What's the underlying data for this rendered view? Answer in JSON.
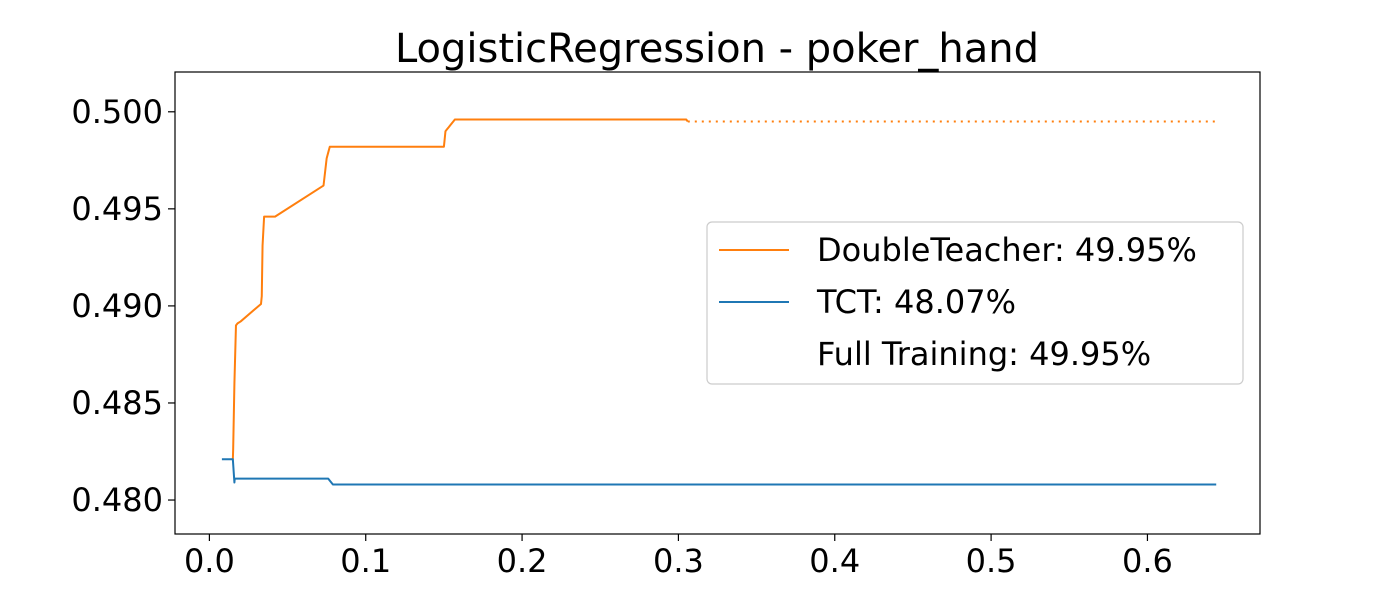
{
  "chart_data": {
    "type": "line",
    "title": "LogisticRegression - poker_hand",
    "xlabel": "",
    "ylabel": "",
    "xlim": [
      -0.022,
      0.672
    ],
    "ylim": [
      0.47825,
      0.50205
    ],
    "xticks": [
      0.0,
      0.1,
      0.2,
      0.3,
      0.4,
      0.5,
      0.6
    ],
    "xtick_labels": [
      "0.0",
      "0.1",
      "0.2",
      "0.3",
      "0.4",
      "0.5",
      "0.6"
    ],
    "yticks": [
      0.48,
      0.485,
      0.49,
      0.495,
      0.5
    ],
    "ytick_labels": [
      "0.480",
      "0.485",
      "0.490",
      "0.495",
      "0.500"
    ],
    "grid": false,
    "legend_position": "center-right",
    "series": [
      {
        "name": "DoubleTeacher: 49.95%",
        "color": "#ff7f0e",
        "style": "solid",
        "x": [
          0.015,
          0.0152,
          0.016,
          0.0165,
          0.017,
          0.018,
          0.02,
          0.033,
          0.0335,
          0.034,
          0.035,
          0.04,
          0.042,
          0.073,
          0.074,
          0.075,
          0.076,
          0.077,
          0.15,
          0.1505,
          0.151,
          0.152,
          0.153,
          0.154,
          0.156,
          0.157,
          0.158,
          0.305,
          0.306
        ],
        "y": [
          0.4821,
          0.4826,
          0.486,
          0.4875,
          0.489,
          0.4891,
          0.4892,
          0.4901,
          0.4905,
          0.4931,
          0.4946,
          0.4946,
          0.4946,
          0.4962,
          0.4969,
          0.4976,
          0.4979,
          0.4982,
          0.4982,
          0.4986,
          0.499,
          0.4991,
          0.4992,
          0.4993,
          0.4995,
          0.4996,
          0.4996,
          0.4996,
          0.4995
        ]
      },
      {
        "name": "",
        "color": "#ff7f0e",
        "style": "dotted",
        "x": [
          0.306,
          0.644
        ],
        "y": [
          0.4995,
          0.4995
        ]
      },
      {
        "name": "TCT: 48.07%",
        "color": "#1f77b4",
        "style": "solid",
        "x": [
          0.008,
          0.015,
          0.016,
          0.0162,
          0.0165,
          0.017,
          0.076,
          0.077,
          0.079,
          0.081,
          0.644
        ],
        "y": [
          0.4821,
          0.4821,
          0.4809,
          0.4811,
          0.4811,
          0.4811,
          0.4811,
          0.481,
          0.4808,
          0.4808,
          0.4808
        ]
      }
    ],
    "legend_entries": [
      {
        "label": "DoubleTeacher: 49.95%",
        "color": "#ff7f0e",
        "show_line": true
      },
      {
        "label": "TCT: 48.07%",
        "color": "#1f77b4",
        "show_line": true
      },
      {
        "label": "Full Training: 49.95%",
        "color": "#ffffff",
        "show_line": false
      }
    ]
  }
}
